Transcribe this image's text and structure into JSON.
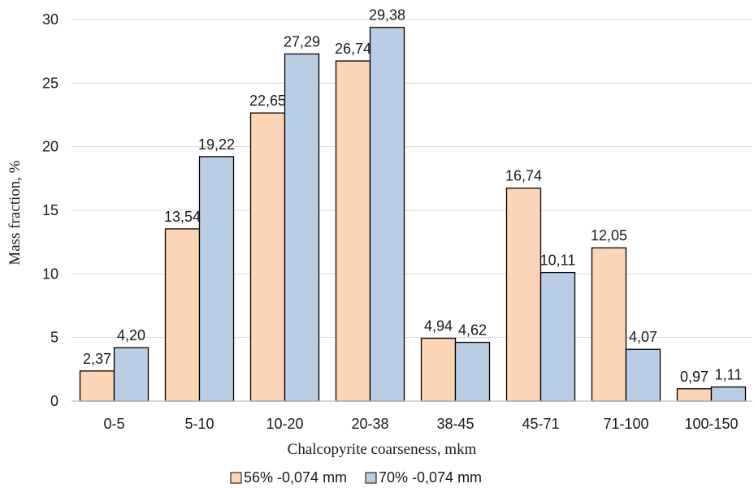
{
  "chart_data": {
    "type": "bar",
    "title": "",
    "xlabel": "Chalcopyrite coarseness, mkm",
    "ylabel": "Mass fraction, %",
    "ylim": [
      0,
      30
    ],
    "yticks": [
      "0",
      "5",
      "10",
      "15",
      "20",
      "25",
      "30"
    ],
    "grid": true,
    "legend_position": "bottom",
    "categories": [
      "0-5",
      "5-10",
      "10-20",
      "20-38",
      "38-45",
      "45-71",
      "71-100",
      "100-150"
    ],
    "series": [
      {
        "name": "56% -0,074 mm",
        "color": "#fbd5b5",
        "values": [
          2.37,
          13.54,
          22.65,
          26.74,
          4.94,
          16.74,
          12.05,
          0.97
        ],
        "labels": [
          "2,37",
          "13,54",
          "22,65",
          "26,74",
          "4,94",
          "16,74",
          "12,05",
          "0,97"
        ]
      },
      {
        "name": "70% -0,074 mm",
        "color": "#b9cde5",
        "values": [
          4.2,
          19.22,
          27.29,
          29.38,
          4.62,
          10.11,
          4.07,
          1.11
        ],
        "labels": [
          "4,20",
          "19,22",
          "27,29",
          "29,38",
          "4,62",
          "10,11",
          "4,07",
          "1,11"
        ]
      }
    ]
  }
}
